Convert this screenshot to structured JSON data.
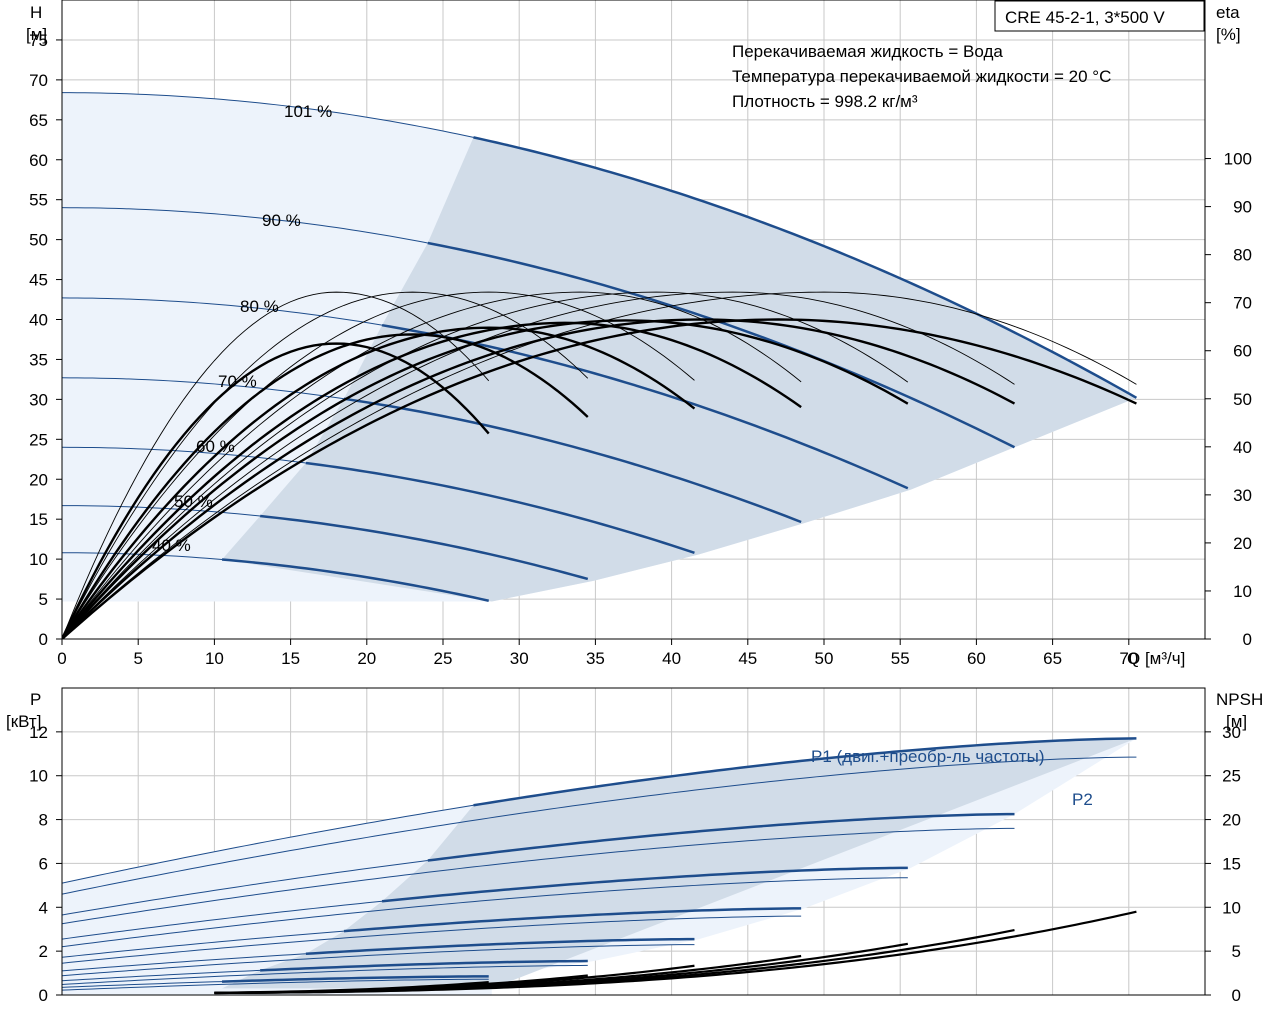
{
  "chart_data": [
    {
      "type": "line",
      "title": "CRE 45-2-1, 3*500 V",
      "info": [
        "Перекачиваемая жидкость = Вода",
        "Температура перекачиваемой жидкости = 20 °C",
        "Плотность = 998.2 кг/м³"
      ],
      "ylabel": "H",
      "yunit": "[м]",
      "ylabel_right": "eta",
      "yunit_right": "[%]",
      "xlabel": "Q [м³/ч]",
      "xlim": [
        0,
        75
      ],
      "ylim": [
        0,
        80
      ],
      "ylim_right": [
        0,
        133
      ],
      "x_ticks": [
        "0",
        "5",
        "10",
        "15",
        "20",
        "25",
        "30",
        "35",
        "40",
        "45",
        "50",
        "55",
        "60",
        "65",
        "70"
      ],
      "y_ticks": [
        "0",
        "5",
        "10",
        "15",
        "20",
        "25",
        "30",
        "35",
        "40",
        "45",
        "50",
        "55",
        "60",
        "65",
        "70",
        "75"
      ],
      "y_right_ticks": [
        "0",
        "10",
        "20",
        "30",
        "40",
        "50",
        "60",
        "70",
        "80",
        "90",
        "100"
      ],
      "head_curves": [
        {
          "name": "101 %",
          "h0": 68.4,
          "qmax": 70.5,
          "hend": 30.2,
          "qmin": 27
        },
        {
          "name": "90 %",
          "h0": 54.0,
          "qmax": 62.5,
          "hend": 24.0,
          "qmin": 24
        },
        {
          "name": "80 %",
          "h0": 42.7,
          "qmax": 55.7,
          "hend": 18.7,
          "qmin": 21
        },
        {
          "name": "70 %",
          "h0": 32.7,
          "qmax": 48.7,
          "hend": 14.5,
          "qmin": 18.5
        },
        {
          "name": "60 %",
          "h0": 24.0,
          "qmax": 41.8,
          "hend": 10.6,
          "qmin": 16
        },
        {
          "name": "50 %",
          "h0": 16.7,
          "qmax": 34.9,
          "hend": 7.3,
          "qmin": 13
        },
        {
          "name": "40 %",
          "h0": 10.8,
          "qmax": 28.2,
          "hend": 4.7,
          "qmin": 10.5
        }
      ],
      "efficiency_curves": [
        {
          "name": "eta 101 %",
          "qmax": 70.5,
          "peak_q": 47,
          "peak": 66.5,
          "end": 49
        },
        {
          "name": "eta 90 %",
          "qmax": 62.5,
          "peak_q": 42,
          "peak": 66.5,
          "end": 49
        },
        {
          "name": "eta 80 %",
          "qmax": 55.7,
          "peak_q": 37,
          "peak": 66.3,
          "end": 48.6
        },
        {
          "name": "eta 70 %",
          "qmax": 48.7,
          "peak_q": 33,
          "peak": 65.8,
          "end": 47.8
        },
        {
          "name": "eta 60 %",
          "qmax": 41.8,
          "peak_q": 28,
          "peak": 64.8,
          "end": 47.2
        },
        {
          "name": "eta 50 %",
          "qmax": 34.9,
          "peak_q": 23,
          "peak": 63.4,
          "end": 45.0
        },
        {
          "name": "eta 40 %",
          "qmax": 28.2,
          "peak_q": 18,
          "peak": 61.5,
          "end": 42.0
        }
      ],
      "efficiency_curves_total": [
        {
          "name": "eta total 101 %",
          "qmax": 70.5,
          "peak_q": 50,
          "peak": 72.2,
          "end": 53
        },
        {
          "name": "eta total 90 %",
          "qmax": 62.5,
          "peak_q": 44,
          "peak": 72.2,
          "end": 53
        },
        {
          "name": "eta total 80 %",
          "qmax": 55.7,
          "peak_q": 39,
          "peak": 72.2,
          "end": 53
        },
        {
          "name": "eta total 70 %",
          "qmax": 48.7,
          "peak_q": 34,
          "peak": 72.2,
          "end": 53
        },
        {
          "name": "eta total 60 %",
          "qmax": 41.8,
          "peak_q": 28,
          "peak": 72.2,
          "end": 53
        },
        {
          "name": "eta total 50 %",
          "qmax": 34.9,
          "peak_q": 23,
          "peak": 72.2,
          "end": 53
        },
        {
          "name": "eta total 40 %",
          "qmax": 28.2,
          "peak_q": 18,
          "peak": 72.2,
          "end": 53
        }
      ]
    },
    {
      "type": "line",
      "ylabel": "P",
      "yunit": "[кВт]",
      "ylabel_right": "NPSH",
      "yunit_right": "[м]",
      "xlim": [
        0,
        75
      ],
      "ylim": [
        0,
        14
      ],
      "ylim_right": [
        0,
        35
      ],
      "y_ticks": [
        "0",
        "2",
        "4",
        "6",
        "8",
        "10",
        "12"
      ],
      "y_right_ticks": [
        "0",
        "5",
        "10",
        "15",
        "20",
        "25",
        "30"
      ],
      "p1_label": "P1 (двиг.+преобр-ль частоты)",
      "p2_label": "P2",
      "p1_curves": [
        {
          "name": "P1 101 %",
          "p0": 5.1,
          "qmax": 70.5,
          "pend": 11.7
        },
        {
          "name": "P1 90 %",
          "p0": 3.65,
          "qmax": 62.5,
          "pend": 8.25
        },
        {
          "name": "P1 80 %",
          "p0": 2.55,
          "qmax": 55.7,
          "pend": 5.8
        },
        {
          "name": "P1 70 %",
          "p0": 1.72,
          "qmax": 48.7,
          "pend": 3.95
        },
        {
          "name": "P1 60 %",
          "p0": 1.1,
          "qmax": 41.8,
          "pend": 2.55
        },
        {
          "name": "P1 50 %",
          "p0": 0.65,
          "qmax": 34.9,
          "pend": 1.55
        },
        {
          "name": "P1 40 %",
          "p0": 0.35,
          "qmax": 28.2,
          "pend": 0.85
        }
      ],
      "p2_curves": [
        {
          "name": "P2 101 %",
          "p0": 4.6,
          "qmax": 70.5,
          "pend": 10.85
        },
        {
          "name": "P2 90 %",
          "p0": 3.25,
          "qmax": 62.5,
          "pend": 7.6
        },
        {
          "name": "P2 80 %",
          "p0": 2.2,
          "qmax": 55.7,
          "pend": 5.35
        },
        {
          "name": "P2 70 %",
          "p0": 1.45,
          "qmax": 48.7,
          "pend": 3.6
        },
        {
          "name": "P2 60 %",
          "p0": 0.88,
          "qmax": 41.8,
          "pend": 2.3
        },
        {
          "name": "P2 50 %",
          "p0": 0.48,
          "qmax": 34.9,
          "pend": 1.35
        },
        {
          "name": "P2 40 %",
          "p0": 0.22,
          "qmax": 28.2,
          "pend": 0.72
        }
      ],
      "npsh_curves": [
        {
          "name": "NPSH 101 %",
          "qmax": 70.5,
          "end": 9.5
        },
        {
          "name": "NPSH 90 %",
          "qmax": 62.5,
          "end": 7.4
        },
        {
          "name": "NPSH 80 %",
          "qmax": 55.7,
          "end": 5.9
        },
        {
          "name": "NPSH 70 %",
          "qmax": 48.7,
          "end": 4.5
        },
        {
          "name": "NPSH 60 %",
          "qmax": 41.8,
          "end": 3.4
        },
        {
          "name": "NPSH 50 %",
          "qmax": 34.9,
          "end": 2.3
        },
        {
          "name": "NPSH 40 %",
          "qmax": 28.2,
          "end": 1.5
        }
      ]
    }
  ]
}
